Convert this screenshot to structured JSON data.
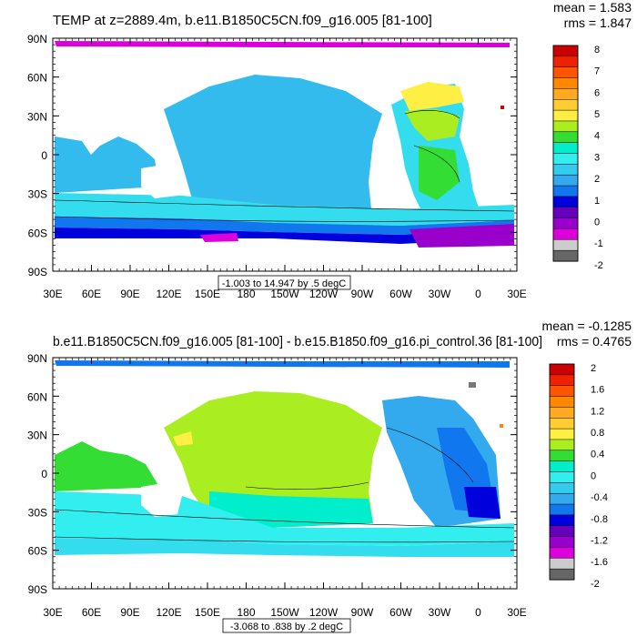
{
  "panels": [
    {
      "title": "TEMP at z=2889.4m, b.e11.B1850C5CN.f09_g16.005 [81-100]",
      "mean": "mean = 1.583",
      "rms": "rms = 1.847",
      "range_label": "-1.003 to 14.947 by .5 degC",
      "lat_ticks": [
        "90N",
        "60N",
        "30N",
        "0",
        "30S",
        "60S",
        "90S"
      ],
      "lon_ticks": [
        "30E",
        "60E",
        "90E",
        "120E",
        "150E",
        "180",
        "150W",
        "120W",
        "90W",
        "60W",
        "30W",
        "0",
        "30E"
      ],
      "colorbar_labels": [
        "8",
        "7",
        "6",
        "5",
        "4",
        "3",
        "2",
        "1",
        "0",
        "-1",
        "-2"
      ],
      "colorbar_colors": [
        "#cc0000",
        "#ee2200",
        "#ff5500",
        "#ff8800",
        "#ffaa22",
        "#ffcc33",
        "#ffee44",
        "#aaee22",
        "#33dd33",
        "#00eecc",
        "#33eeee",
        "#33ccee",
        "#33aaee",
        "#1177ee",
        "#0000dd",
        "#6600bb",
        "#9900cc",
        "#dd00dd",
        "#cccccc",
        "#666666"
      ]
    },
    {
      "title": "b.e11.B1850C5CN.f09_g16.005 [81-100] - b.e15.B1850.f09_g16.pi_control.36 [81-100]",
      "mean": "mean = -0.1285",
      "rms": "rms = 0.4765",
      "range_label": "-3.068 to .838 by .2 degC",
      "lat_ticks": [
        "90N",
        "60N",
        "30N",
        "0",
        "30S",
        "60S",
        "90S"
      ],
      "lon_ticks": [
        "30E",
        "60E",
        "90E",
        "120E",
        "150E",
        "180",
        "150W",
        "120W",
        "90W",
        "60W",
        "30W",
        "0",
        "30E"
      ],
      "colorbar_labels": [
        "2",
        "1.6",
        "1.2",
        "0.8",
        "0.4",
        "0",
        "-0.4",
        "-0.8",
        "-1.2",
        "-1.6",
        "-2"
      ],
      "colorbar_colors": [
        "#cc0000",
        "#ee2200",
        "#ff5500",
        "#ff8800",
        "#ffaa22",
        "#ffcc33",
        "#ffee44",
        "#aaee22",
        "#33dd33",
        "#00eecc",
        "#33eeee",
        "#33ccee",
        "#33aaee",
        "#1177ee",
        "#0000dd",
        "#6600bb",
        "#9900cc",
        "#dd00dd",
        "#cccccc",
        "#666666"
      ]
    }
  ],
  "map_colors": {
    "p1_main": "#33bbee",
    "p1_cyan": "#33ddee",
    "p1_deep": "#1177ee",
    "p1_dark": "#0000dd",
    "p1_purple": "#9900cc",
    "p1_magenta": "#dd00dd",
    "p1_green": "#33dd33",
    "p1_lime": "#aaee22",
    "p1_yellow": "#ffee44",
    "p2_green": "#aaee22",
    "p2_green2": "#33dd33",
    "p2_teal": "#00eecc",
    "p2_cyan": "#33eeee",
    "p2_blue": "#33aaee",
    "p2_deep": "#1177ee",
    "p2_dark": "#0000dd",
    "p2_yellow": "#ffee44"
  }
}
